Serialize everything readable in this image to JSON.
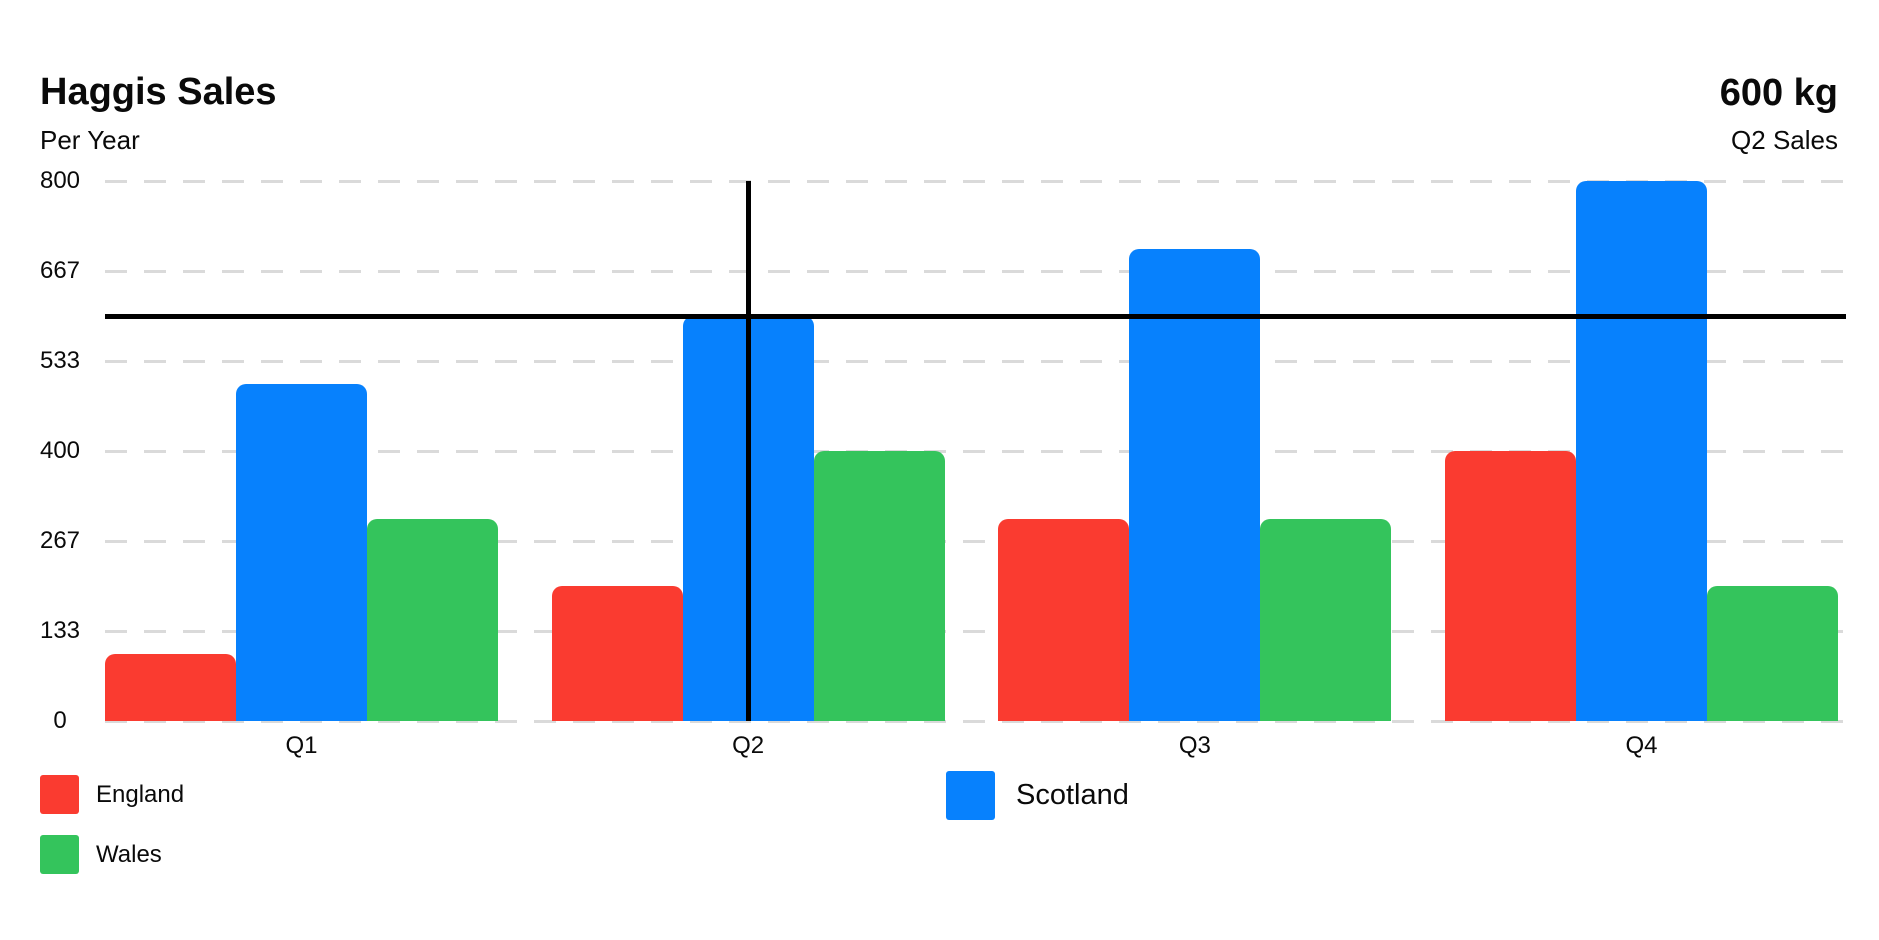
{
  "header": {
    "title": "Haggis Sales",
    "subtitle": "Per Year",
    "kpi_value": "600 kg",
    "kpi_label": "Q2 Sales"
  },
  "chart_data": {
    "type": "bar",
    "title": "Haggis Sales",
    "subtitle": "Per Year",
    "categories": [
      "Q1",
      "Q2",
      "Q3",
      "Q4"
    ],
    "series": [
      {
        "name": "England",
        "color": "#FA3B30",
        "values": [
          100,
          200,
          300,
          400
        ]
      },
      {
        "name": "Scotland",
        "color": "#0781FD",
        "values": [
          500,
          600,
          700,
          800
        ]
      },
      {
        "name": "Wales",
        "color": "#34C45C",
        "values": [
          300,
          400,
          300,
          200
        ]
      }
    ],
    "ylim": [
      0,
      800
    ],
    "yticks": [
      800,
      667,
      533,
      400,
      267,
      133,
      0
    ],
    "ytick_labels": [
      "800",
      "667",
      "533",
      "400",
      "267",
      "133",
      "0"
    ],
    "grid": "horizontal-dashed",
    "legend_position": "bottom",
    "annotation": {
      "type": "crosshair",
      "category": "Q2",
      "value": 600,
      "color": "#000000",
      "callout_value": "600 kg",
      "callout_label": "Q2 Sales"
    }
  }
}
